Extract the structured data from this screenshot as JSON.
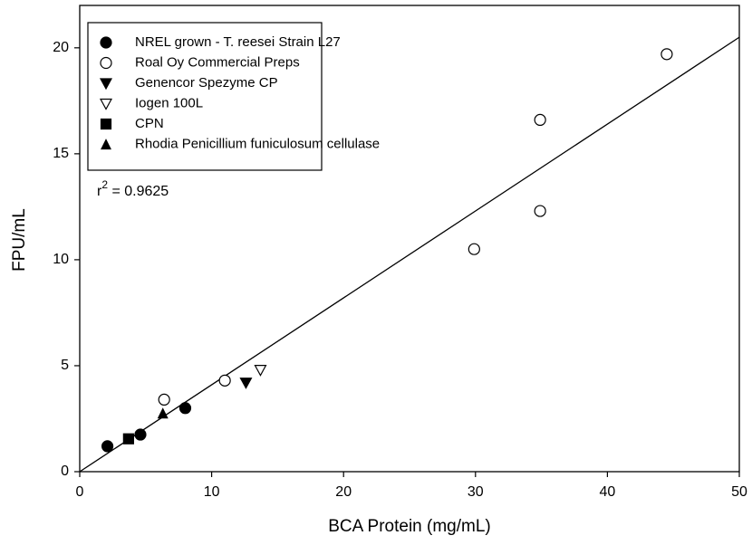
{
  "chart_data": {
    "type": "scatter",
    "x_label": "BCA Protein (mg/mL)",
    "y_label": "FPU/mL",
    "xlim": [
      0,
      50
    ],
    "ylim": [
      0,
      22
    ],
    "xticks": [
      0,
      10,
      20,
      30,
      40,
      50
    ],
    "yticks": [
      0,
      5,
      10,
      15,
      20
    ],
    "legend": "upper left",
    "series": [
      {
        "name": "NREL grown - T. reesei Strain L27",
        "color": "#000000",
        "marker": "circle-filled",
        "x": [
          2.1,
          4.6,
          8.0
        ],
        "values": [
          1.2,
          1.75,
          3.0
        ]
      },
      {
        "name": "Roal Oy Commercial Preps",
        "color": "#000000",
        "marker": "circle-open",
        "x": [
          6.4,
          11.0,
          29.9,
          34.9,
          34.9,
          44.5
        ],
        "values": [
          3.4,
          4.3,
          10.5,
          12.3,
          16.6,
          19.7
        ]
      },
      {
        "name": "Genencor Spezyme CP",
        "color": "#000000",
        "marker": "triangle-down-filled",
        "x": [
          12.6
        ],
        "values": [
          4.2
        ]
      },
      {
        "name": "Iogen 100L",
        "color": "#000000",
        "marker": "triangle-down-open",
        "x": [
          13.7
        ],
        "values": [
          4.8
        ]
      },
      {
        "name": "CPN",
        "color": "#000000",
        "marker": "square-filled",
        "x": [
          3.7
        ],
        "values": [
          1.55
        ]
      },
      {
        "name": "Rhodia Penicillium funiculosum cellulase",
        "color": "#000000",
        "marker": "triangle-up-filled",
        "x": [
          6.3
        ],
        "values": [
          2.75
        ]
      }
    ],
    "fit_line": {
      "x": [
        0,
        50
      ],
      "y": [
        0,
        20.5
      ]
    },
    "annotation": [
      "r",
      "2",
      " = 0.9625"
    ]
  }
}
